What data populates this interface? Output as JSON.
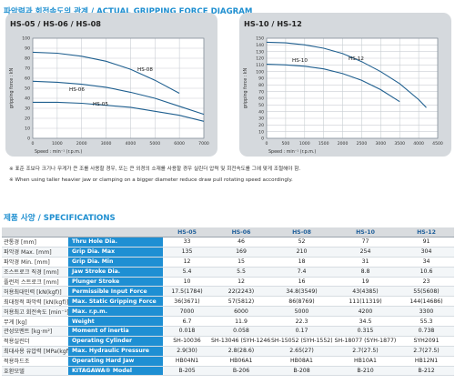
{
  "header": {
    "title_kr": "파악력과 회전속도의 관계 / ",
    "title_en": "ACTUAL GRIPPING FORCE DIAGRAM"
  },
  "chart_data": [
    {
      "type": "line",
      "title": "HS-05 / HS-06 / HS-08",
      "xlabel": "Speed : min⁻¹ (r.p.m.)",
      "ylabel": "gripping force : kN",
      "xlim": [
        0,
        7000
      ],
      "ylim": [
        0,
        100
      ],
      "xticks": [
        "0",
        "1000",
        "2000",
        "3000",
        "4000",
        "5000",
        "6000",
        "7000"
      ],
      "yticks": [
        "0",
        "10",
        "20",
        "30",
        "40",
        "50",
        "60",
        "70",
        "80",
        "90",
        "100"
      ],
      "grid": true,
      "series": [
        {
          "name": "HS-08",
          "x": [
            0,
            1000,
            2000,
            3000,
            4000,
            5000,
            6000
          ],
          "y": [
            86,
            85,
            82,
            77,
            69,
            58,
            45
          ]
        },
        {
          "name": "HS-06",
          "x": [
            0,
            1000,
            2000,
            3000,
            4000,
            5000,
            6000,
            7000
          ],
          "y": [
            57,
            56,
            54,
            51,
            46,
            40,
            32,
            24
          ]
        },
        {
          "name": "HS-05",
          "x": [
            0,
            1000,
            2000,
            3000,
            4000,
            5000,
            6000,
            7000
          ],
          "y": [
            36,
            36,
            35,
            33,
            31,
            27,
            23,
            17
          ]
        }
      ]
    },
    {
      "type": "line",
      "title": "HS-10 / HS-12",
      "xlabel": "Speed : min⁻¹ (r.p.m.)",
      "ylabel": "gripping force : kN",
      "xlim": [
        0,
        4500
      ],
      "ylim": [
        0,
        150
      ],
      "xticks": [
        "0",
        "500",
        "1000",
        "1500",
        "2000",
        "2500",
        "3000",
        "3500",
        "4000",
        "4500"
      ],
      "yticks": [
        "0",
        "10",
        "20",
        "30",
        "40",
        "50",
        "60",
        "70",
        "80",
        "90",
        "100",
        "110",
        "120",
        "130",
        "140",
        "150"
      ],
      "grid": true,
      "series": [
        {
          "name": "HS-12",
          "x": [
            0,
            500,
            1000,
            1500,
            2000,
            2500,
            3000,
            3500,
            4000,
            4200
          ],
          "y": [
            144,
            143,
            140,
            135,
            127,
            115,
            100,
            82,
            58,
            46
          ]
        },
        {
          "name": "HS-10",
          "x": [
            0,
            500,
            1000,
            1500,
            2000,
            2500,
            3000,
            3500
          ],
          "y": [
            111,
            110,
            108,
            104,
            97,
            87,
            73,
            55
          ]
        }
      ]
    }
  ],
  "notes": [
    "※ 표준 조보다 크기나 무게가 큰 조를 사용할 경우, 또는 큰 외경의 소재를 사용할 경우 실린더 압력 및 회전속도를 그에 맞게 조절해야 함.",
    "※ When using taller heavier jaw or clamping on a bigger diameter reduce draw pull rotating speed accordingly."
  ],
  "spec": {
    "title_kr": "제품 사양 / ",
    "title_en": "SPECIFICATIONS",
    "models": [
      "HS-05",
      "HS-06",
      "HS-08",
      "HS-10",
      "HS-12"
    ],
    "rows": [
      {
        "kr": "관통경 [mm]",
        "en": "Thru Hole Dia.",
        "v": [
          "33",
          "46",
          "52",
          "77",
          "91"
        ]
      },
      {
        "kr": "파악경 Max. [mm]",
        "en": "Grip Dia. Max",
        "v": [
          "135",
          "169",
          "210",
          "254",
          "304"
        ]
      },
      {
        "kr": "파악경 Min. [mm]",
        "en": "Grip Dia. Min",
        "v": [
          "12",
          "15",
          "18",
          "31",
          "34"
        ]
      },
      {
        "kr": "조스트로크 직경 [mm]",
        "en": "Jaw Stroke Dia.",
        "v": [
          "5.4",
          "5.5",
          "7.4",
          "8.8",
          "10.6"
        ]
      },
      {
        "kr": "플런저 스트로크 [mm]",
        "en": "Plunger Stroke",
        "v": [
          "10",
          "12",
          "16",
          "19",
          "23"
        ]
      },
      {
        "kr": "허용최대인력 [kN(kgf)]",
        "en": "Permissible Input Force",
        "v": [
          "17.5(1784)",
          "22(2243)",
          "34.8(3549)",
          "43(4385)",
          "55(5608)"
        ]
      },
      {
        "kr": "최대정적 파악력 [kN(kgf)]",
        "en": "Max. Static Gripping Force",
        "v": [
          "36(3671)",
          "57(5812)",
          "86(8769)",
          "111(11319)",
          "144(14686)"
        ]
      },
      {
        "kr": "허용최고 회전속도 [min⁻¹]",
        "en": "Max. r.p.m.",
        "v": [
          "7000",
          "6000",
          "5000",
          "4200",
          "3300"
        ]
      },
      {
        "kr": "무게 [kg]",
        "en": "Weight",
        "v": [
          "6.7",
          "11.9",
          "22.3",
          "34.5",
          "55.3"
        ]
      },
      {
        "kr": "관성모멘트 [kg·m²]",
        "en": "Moment of inertia",
        "v": [
          "0.018",
          "0.058",
          "0.17",
          "0.315",
          "0.738"
        ]
      },
      {
        "kr": "적용실린더",
        "en": "Operating Cylinder",
        "v": [
          "SH-10036",
          "SH-13046 (SYH-1246)",
          "SH-15052 (SYH-1552)",
          "SH-18077 (SYH-1877)",
          "SYH2091"
        ]
      },
      {
        "kr": "최대사용 유압력 [MPa(kgf/cm²)]",
        "en": "Max. Hydraulic Pressure",
        "v": [
          "2.9(30)",
          "2.8(28.6)",
          "2.65(27)",
          "2.7(27.5)",
          "2.7(27.5)"
        ]
      },
      {
        "kr": "적용하드조",
        "en": "Operating Hard Jaw",
        "v": [
          "HB04N1",
          "HB06A1",
          "HB08A1",
          "HB10A1",
          "HB12N1"
        ]
      },
      {
        "kr": "호환모델",
        "en": "KITAGAWA® Model",
        "v": [
          "B-205",
          "B-206",
          "B-208",
          "B-210",
          "B-212"
        ]
      }
    ]
  },
  "colors": {
    "accent": "#1f8fd0",
    "curve": "#1f5f8f",
    "panel": "#d5d9dd",
    "table_label": "#1e8fd3"
  }
}
